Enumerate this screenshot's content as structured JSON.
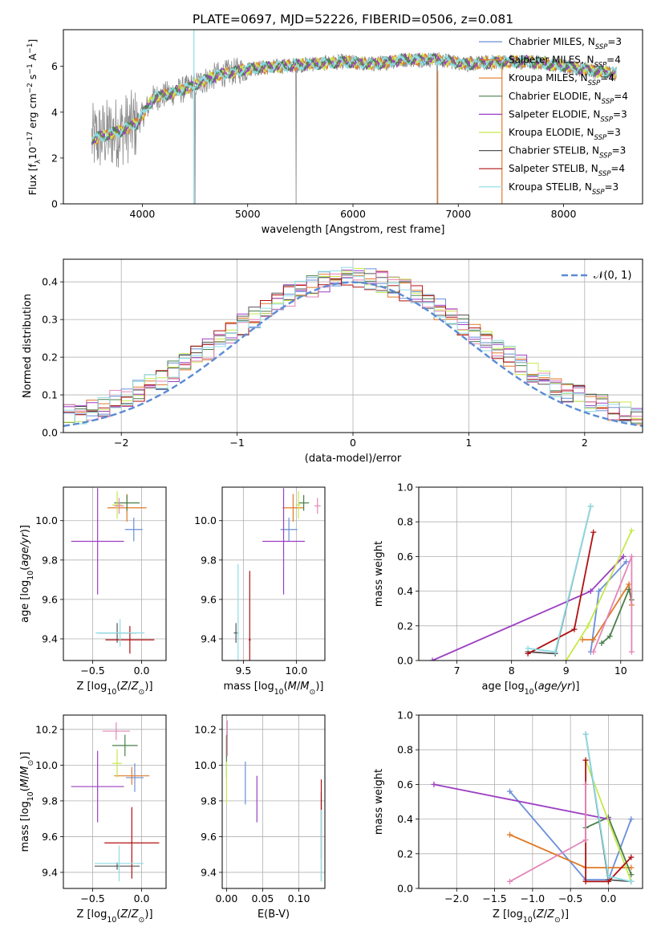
{
  "figure_title": "PLATE=0697, MJD=52226, FIBERID=0506, z=0.081",
  "colors": {
    "blue": "#6a8fd8",
    "orange": "#e07a28",
    "green": "#4b7f4b",
    "purple": "#9b3fc2",
    "yellow": "#c7e84d",
    "grey": "#555555",
    "red": "#b01010",
    "pink": "#e386b8",
    "cyan": "#8fdde5",
    "gauss": "#5b8bd4"
  },
  "chart_data": [
    {
      "id": "spectrum",
      "type": "line",
      "xlabel": "wavelength [Angstrom, rest frame]",
      "ylabel": "Flux [f_λ10^-17 erg cm^-2 s^-1 A^-1]",
      "xlim": [
        3250,
        8750
      ],
      "ylim": [
        0,
        7.6
      ],
      "xticks": [
        4000,
        5000,
        6000,
        7000,
        8000
      ],
      "yticks": [
        0,
        2,
        4,
        6
      ],
      "grid": false,
      "legend_position": "right",
      "continuum_x": [
        3520,
        3650,
        3800,
        3950,
        4100,
        4400,
        4700,
        5000,
        5300,
        5600,
        5900,
        6200,
        6500,
        6800,
        7100,
        7400,
        7700,
        8000,
        8300,
        8500
      ],
      "continuum_y": [
        2.8,
        3.0,
        3.2,
        3.5,
        4.6,
        5.0,
        5.6,
        5.9,
        6.0,
        6.1,
        6.2,
        6.1,
        6.3,
        6.3,
        6.1,
        6.2,
        6.2,
        6.0,
        5.8,
        5.7
      ],
      "series": [
        {
          "name": "Chabrier MILES",
          "nssp": "3",
          "color": "blue"
        },
        {
          "name": "Salpeter MILES",
          "nssp": "4",
          "color": "orange"
        },
        {
          "name": "Kroupa MILES",
          "nssp": "4",
          "color": "orange"
        },
        {
          "name": "Chabrier ELODIE",
          "nssp": "4",
          "color": "green"
        },
        {
          "name": "Salpeter ELODIE",
          "nssp": "3",
          "color": "purple"
        },
        {
          "name": "Kroupa ELODIE",
          "nssp": "3",
          "color": "yellow"
        },
        {
          "name": "Chabrier STELIB",
          "nssp": "3",
          "color": "grey"
        },
        {
          "name": "Salpeter STELIB",
          "nssp": "4",
          "color": "red"
        },
        {
          "name": "Kroupa STELIB",
          "nssp": "3",
          "color": "cyan"
        }
      ]
    },
    {
      "id": "residuals",
      "type": "line",
      "xlabel": "(data-model)/error",
      "ylabel": "Normed distribution",
      "xlim": [
        -2.5,
        2.5
      ],
      "ylim": [
        0,
        0.46
      ],
      "xticks": [
        -2,
        -1,
        0,
        1,
        2
      ],
      "yticks": [
        0.0,
        0.1,
        0.2,
        0.3,
        0.4
      ],
      "grid": true,
      "legend_position": "top-right",
      "gauss_label": "𝒩(0, 1)",
      "step_colors": [
        "blue",
        "orange",
        "green",
        "purple",
        "yellow",
        "grey",
        "red",
        "pink",
        "cyan"
      ],
      "bin_width": 0.1
    },
    {
      "id": "age_vs_Z",
      "type": "scatter",
      "xlabel": "Z [log10(Z/Z⊙)]",
      "ylabel": "age  [log10(age/yr)]",
      "xlim": [
        -0.8,
        0.25
      ],
      "ylim": [
        9.29,
        10.17
      ],
      "xticks": [
        -0.5,
        0.0
      ],
      "yticks": [
        9.4,
        9.6,
        9.8,
        10.0
      ],
      "grid": true,
      "points": [
        {
          "x": -0.08,
          "y": 9.955,
          "xe": 0.09,
          "ye": 0.06,
          "c": "blue"
        },
        {
          "x": -0.15,
          "y": 10.065,
          "xe": 0.2,
          "ye": 0.07,
          "c": "orange"
        },
        {
          "x": -0.15,
          "y": 10.09,
          "xe": 0.13,
          "ye": 0.04,
          "c": "green"
        },
        {
          "x": -0.45,
          "y": 9.895,
          "xe": 0.27,
          "ye": 0.27,
          "c": "purple"
        },
        {
          "x": -0.25,
          "y": 10.08,
          "xe": 0.05,
          "ye": 0.07,
          "c": "yellow"
        },
        {
          "x": -0.25,
          "y": 9.43,
          "xe": 0.2,
          "ye": 0.05,
          "c": "grey"
        },
        {
          "x": -0.12,
          "y": 9.395,
          "xe": 0.25,
          "ye": 0.07,
          "c": "red"
        },
        {
          "x": -0.23,
          "y": 10.075,
          "xe": 0.05,
          "ye": 0.04,
          "c": "pink"
        },
        {
          "x": -0.22,
          "y": 9.43,
          "xe": 0.25,
          "ye": 0.07,
          "c": "cyan"
        }
      ]
    },
    {
      "id": "age_vs_mass",
      "type": "scatter",
      "xlabel": "mass [log10(M/M⊙)]",
      "ylabel": "",
      "xlim": [
        9.3,
        10.27
      ],
      "ylim": [
        9.29,
        10.17
      ],
      "xticks": [
        9.5,
        10.0
      ],
      "yticks": [
        9.4,
        9.6,
        9.8,
        10.0
      ],
      "grid": true,
      "points": [
        {
          "x": 9.93,
          "y": 9.955,
          "xe": 0.08,
          "ye": 0.06,
          "c": "blue"
        },
        {
          "x": 9.97,
          "y": 10.065,
          "xe": 0.1,
          "ye": 0.07,
          "c": "orange"
        },
        {
          "x": 10.07,
          "y": 10.09,
          "xe": 0.05,
          "ye": 0.04,
          "c": "green"
        },
        {
          "x": 9.88,
          "y": 9.895,
          "xe": 0.2,
          "ye": 0.27,
          "c": "purple"
        },
        {
          "x": 10.02,
          "y": 10.08,
          "xe": 0.02,
          "ye": 0.07,
          "c": "yellow"
        },
        {
          "x": 9.43,
          "y": 9.43,
          "xe": 0.02,
          "ye": 0.05,
          "c": "grey"
        },
        {
          "x": 9.56,
          "y": 9.395,
          "xe": 0.01,
          "ye": 0.35,
          "c": "red"
        },
        {
          "x": 10.2,
          "y": 10.075,
          "xe": 0.03,
          "ye": 0.04,
          "c": "pink"
        },
        {
          "x": 9.45,
          "y": 9.43,
          "xe": 0.01,
          "ye": 0.35,
          "c": "cyan"
        }
      ]
    },
    {
      "id": "weight_vs_age",
      "type": "line",
      "xlabel": "age  [log10(age/yr)]",
      "ylabel": "mass weight",
      "xlim": [
        6.3,
        10.4
      ],
      "ylim": [
        0,
        1.0
      ],
      "xticks": [
        7,
        8,
        9,
        10
      ],
      "yticks": [
        0.0,
        0.2,
        0.4,
        0.6,
        0.8,
        1.0
      ],
      "grid": true,
      "series": [
        {
          "c": "blue",
          "x": [
            9.45,
            9.6,
            10.1
          ],
          "y": [
            0.05,
            0.4,
            0.57
          ]
        },
        {
          "c": "orange",
          "x": [
            9.3,
            9.5,
            10.15,
            10.2
          ],
          "y": [
            0.12,
            0.12,
            0.44,
            0.32
          ]
        },
        {
          "c": "green",
          "x": [
            9.65,
            9.8,
            10.15,
            10.2
          ],
          "y": [
            0.1,
            0.14,
            0.41,
            0.35
          ]
        },
        {
          "c": "purple",
          "x": [
            6.55,
            9.45,
            10.05
          ],
          "y": [
            0.0,
            0.4,
            0.6
          ]
        },
        {
          "c": "yellow",
          "x": [
            9.0,
            9.4,
            10.2
          ],
          "y": [
            0.0,
            0.2,
            0.75
          ]
        },
        {
          "c": "grey",
          "x": [
            8.3,
            8.8,
            9.45
          ],
          "y": [
            0.05,
            0.04,
            0.89
          ]
        },
        {
          "c": "red",
          "x": [
            8.3,
            9.15,
            9.5
          ],
          "y": [
            0.04,
            0.18,
            0.74
          ]
        },
        {
          "c": "pink",
          "x": [
            9.5,
            10.2,
            10.2
          ],
          "y": [
            0.05,
            0.6,
            0.05
          ]
        },
        {
          "c": "cyan",
          "x": [
            8.3,
            8.8,
            9.45
          ],
          "y": [
            0.07,
            0.05,
            0.89
          ]
        }
      ]
    },
    {
      "id": "mass_vs_Z",
      "type": "scatter",
      "xlabel": "Z [log10(Z/Z⊙)]",
      "ylabel": "mass [log10(M/M⊙)]",
      "xlim": [
        -0.8,
        0.25
      ],
      "ylim": [
        9.31,
        10.28
      ],
      "xticks": [
        -0.5,
        0.0
      ],
      "yticks": [
        9.4,
        9.6,
        9.8,
        10.0,
        10.2
      ],
      "grid": true,
      "points": [
        {
          "x": -0.07,
          "y": 9.93,
          "xe": 0.09,
          "ye": 0.08,
          "c": "blue"
        },
        {
          "x": -0.1,
          "y": 9.94,
          "xe": 0.18,
          "ye": 0.05,
          "c": "orange"
        },
        {
          "x": -0.17,
          "y": 10.11,
          "xe": 0.13,
          "ye": 0.06,
          "c": "green"
        },
        {
          "x": -0.45,
          "y": 9.88,
          "xe": 0.27,
          "ye": 0.2,
          "c": "purple"
        },
        {
          "x": -0.25,
          "y": 10.01,
          "xe": 0.05,
          "ye": 0.08,
          "c": "yellow"
        },
        {
          "x": -0.25,
          "y": 9.435,
          "xe": 0.23,
          "ye": 0.02,
          "c": "grey"
        },
        {
          "x": -0.1,
          "y": 9.565,
          "xe": 0.28,
          "ye": 0.2,
          "c": "red"
        },
        {
          "x": -0.26,
          "y": 10.19,
          "xe": 0.14,
          "ye": 0.05,
          "c": "pink"
        },
        {
          "x": -0.23,
          "y": 9.45,
          "xe": 0.25,
          "ye": 0.1,
          "c": "cyan"
        }
      ]
    },
    {
      "id": "mass_vs_ebv",
      "type": "scatter",
      "xlabel": "E(B-V)",
      "ylabel": "",
      "xlim": [
        -0.006,
        0.136
      ],
      "ylim": [
        9.31,
        10.28
      ],
      "xticks": [
        0.0,
        0.05,
        0.1
      ],
      "yticks": [
        9.4,
        9.6,
        9.8,
        10.0,
        10.2
      ],
      "grid": true,
      "points": [
        {
          "x": 0.026,
          "y": 9.9,
          "xe": 0,
          "ye": 0.12,
          "c": "blue"
        },
        {
          "x": 0.0,
          "y": 10.1,
          "xe": 0,
          "ye": 0.06,
          "c": "orange"
        },
        {
          "x": 0.0,
          "y": 10.05,
          "xe": 0,
          "ye": 0.12,
          "c": "green"
        },
        {
          "x": 0.042,
          "y": 9.81,
          "xe": 0,
          "ye": 0.13,
          "c": "purple"
        },
        {
          "x": 0.0,
          "y": 9.9,
          "xe": 0,
          "ye": 0.12,
          "c": "yellow"
        },
        {
          "x": 0.131,
          "y": 9.6,
          "xe": 0,
          "ye": 0.25,
          "c": "grey"
        },
        {
          "x": 0.131,
          "y": 9.7,
          "xe": 0,
          "ye": 0.22,
          "c": "red"
        },
        {
          "x": 0.001,
          "y": 10.15,
          "xe": 0,
          "ye": 0.1,
          "c": "pink"
        },
        {
          "x": 0.131,
          "y": 9.55,
          "xe": 0,
          "ye": 0.2,
          "c": "cyan"
        }
      ]
    },
    {
      "id": "weight_vs_Z",
      "type": "line",
      "xlabel": "Z [log10(Z/Z⊙)]",
      "ylabel": "mass weight",
      "xlim": [
        -2.5,
        0.45
      ],
      "ylim": [
        0,
        1.0
      ],
      "xticks": [
        -2.0,
        -1.5,
        -1.0,
        -0.5,
        0.0
      ],
      "yticks": [
        0.0,
        0.2,
        0.4,
        0.6,
        0.8,
        1.0
      ],
      "grid": true,
      "series": [
        {
          "c": "blue",
          "x": [
            -1.3,
            -0.3,
            0.0,
            0.3
          ],
          "y": [
            0.56,
            0.05,
            0.05,
            0.4
          ]
        },
        {
          "c": "orange",
          "x": [
            -1.3,
            -0.3,
            0.3
          ],
          "y": [
            0.31,
            0.12,
            0.12
          ]
        },
        {
          "c": "green",
          "x": [
            -0.3,
            0.0,
            0.3
          ],
          "y": [
            0.35,
            0.41,
            0.08
          ]
        },
        {
          "c": "purple",
          "x": [
            -2.3,
            0.0
          ],
          "y": [
            0.6,
            0.4
          ]
        },
        {
          "c": "yellow",
          "x": [
            -0.3,
            0.3
          ],
          "y": [
            0.74,
            0.04
          ]
        },
        {
          "c": "grey",
          "x": [
            -0.3,
            0.0,
            0.3
          ],
          "y": [
            0.89,
            0.05,
            0.04
          ]
        },
        {
          "c": "red",
          "x": [
            -0.3,
            -0.3,
            0.0,
            0.3
          ],
          "y": [
            0.74,
            0.04,
            0.04,
            0.18
          ]
        },
        {
          "c": "pink",
          "x": [
            -1.3,
            -0.3,
            -0.3
          ],
          "y": [
            0.04,
            0.28,
            0.6
          ]
        },
        {
          "c": "cyan",
          "x": [
            -0.3,
            0.0,
            0.3
          ],
          "y": [
            0.89,
            0.07,
            0.04
          ]
        }
      ]
    }
  ]
}
